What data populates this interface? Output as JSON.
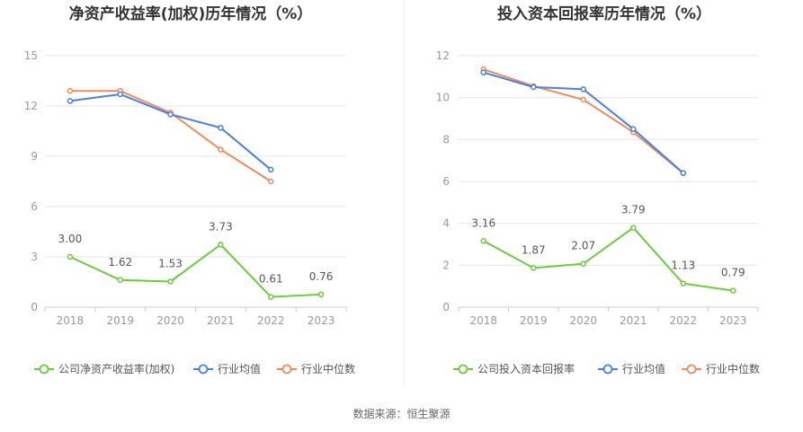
{
  "source": "数据来源：恒生聚源",
  "colors": {
    "company": "#6bcb3b",
    "average": "#4a7ee0",
    "median": "#f08a5d"
  },
  "chart_data": [
    {
      "type": "line",
      "title": "净资产收益率(加权)历年情况（%）",
      "categories": [
        "2018",
        "2019",
        "2020",
        "2021",
        "2022",
        "2023"
      ],
      "ylim": [
        0,
        15
      ],
      "yticks": [
        "0",
        "3",
        "6",
        "9",
        "12",
        "15"
      ],
      "grid": true,
      "legend_position": "bottom",
      "series": [
        {
          "key": "company",
          "name": "公司净资产收益率(加权)",
          "values": [
            3.0,
            1.62,
            1.53,
            3.73,
            0.61,
            0.76
          ],
          "labels": [
            "3.00",
            "1.62",
            "1.53",
            "3.73",
            "0.61",
            "0.76"
          ]
        },
        {
          "key": "average",
          "name": "行业均值",
          "values": [
            12.3,
            12.7,
            11.5,
            10.7,
            8.2,
            null
          ]
        },
        {
          "key": "median",
          "name": "行业中位数",
          "values": [
            12.9,
            12.9,
            11.6,
            9.4,
            7.5,
            null
          ]
        }
      ]
    },
    {
      "type": "line",
      "title": "投入资本回报率历年情况（%）",
      "categories": [
        "2018",
        "2019",
        "2020",
        "2021",
        "2022",
        "2023"
      ],
      "ylim": [
        0,
        12
      ],
      "yticks": [
        "0",
        "2",
        "4",
        "6",
        "8",
        "10",
        "12"
      ],
      "grid": true,
      "legend_position": "bottom",
      "series": [
        {
          "key": "company",
          "name": "公司投入资本回报率",
          "values": [
            3.16,
            1.87,
            2.07,
            3.79,
            1.13,
            0.79
          ],
          "labels": [
            "3.16",
            "1.87",
            "2.07",
            "3.79",
            "1.13",
            "0.79"
          ]
        },
        {
          "key": "average",
          "name": "行业均值",
          "values": [
            11.2,
            10.5,
            10.4,
            8.5,
            6.4,
            null
          ]
        },
        {
          "key": "median",
          "name": "行业中位数",
          "values": [
            11.35,
            10.55,
            9.9,
            8.35,
            6.4,
            null
          ]
        }
      ]
    }
  ]
}
